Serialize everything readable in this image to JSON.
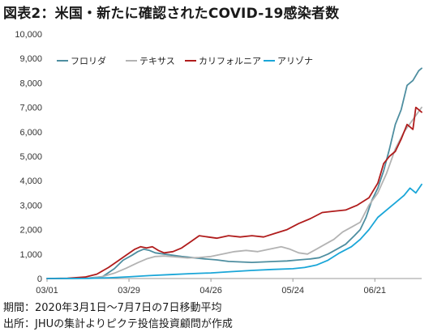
{
  "figure": {
    "title": "図表2：米国・新たに確認されたCOVID-19感染者数",
    "note_period": "期間：2020年3月1日～7月7日の7日移動平均",
    "note_source": "出所：JHUの集計よりピクテ投信投資顧問が作成"
  },
  "chart_data": {
    "type": "line",
    "title": "",
    "xlabel": "",
    "ylabel": "",
    "ylim": [
      0,
      10000
    ],
    "yticks": [
      0,
      1000,
      2000,
      3000,
      4000,
      5000,
      6000,
      7000,
      8000,
      9000,
      10000
    ],
    "ytick_labels": [
      "0",
      "1,000",
      "2,000",
      "3,000",
      "4,000",
      "5,000",
      "6,000",
      "7,000",
      "8,000",
      "9,000",
      "10,000"
    ],
    "xlim": [
      "2020-03-01",
      "2020-07-07"
    ],
    "xtick_labels": [
      "03/01",
      "03/29",
      "04/26",
      "05/24",
      "06/21"
    ],
    "xtick_dates": [
      "2020-03-01",
      "2020-03-29",
      "2020-04-26",
      "2020-05-24",
      "2020-06-21"
    ],
    "grid": false,
    "legend_position": "top-right",
    "series": [
      {
        "name": "フロリダ",
        "color": "#4e8ea0",
        "points": [
          [
            "2020-03-01",
            0
          ],
          [
            "2020-03-08",
            2
          ],
          [
            "2020-03-15",
            15
          ],
          [
            "2020-03-20",
            80
          ],
          [
            "2020-03-24",
            400
          ],
          [
            "2020-03-27",
            750
          ],
          [
            "2020-03-30",
            950
          ],
          [
            "2020-04-01",
            1100
          ],
          [
            "2020-04-03",
            1200
          ],
          [
            "2020-04-05",
            1150
          ],
          [
            "2020-04-07",
            1050
          ],
          [
            "2020-04-10",
            1000
          ],
          [
            "2020-04-13",
            950
          ],
          [
            "2020-04-16",
            900
          ],
          [
            "2020-04-20",
            850
          ],
          [
            "2020-04-24",
            800
          ],
          [
            "2020-04-28",
            760
          ],
          [
            "2020-05-02",
            700
          ],
          [
            "2020-05-06",
            680
          ],
          [
            "2020-05-10",
            660
          ],
          [
            "2020-05-14",
            680
          ],
          [
            "2020-05-18",
            700
          ],
          [
            "2020-05-22",
            720
          ],
          [
            "2020-05-26",
            760
          ],
          [
            "2020-05-30",
            800
          ],
          [
            "2020-06-02",
            850
          ],
          [
            "2020-06-05",
            1000
          ],
          [
            "2020-06-08",
            1200
          ],
          [
            "2020-06-11",
            1400
          ],
          [
            "2020-06-14",
            1750
          ],
          [
            "2020-06-16",
            2000
          ],
          [
            "2020-06-18",
            2500
          ],
          [
            "2020-06-20",
            3200
          ],
          [
            "2020-06-22",
            3700
          ],
          [
            "2020-06-24",
            4400
          ],
          [
            "2020-06-26",
            5300
          ],
          [
            "2020-06-28",
            6300
          ],
          [
            "2020-06-30",
            6900
          ],
          [
            "2020-07-02",
            7900
          ],
          [
            "2020-07-04",
            8100
          ],
          [
            "2020-07-06",
            8500
          ],
          [
            "2020-07-07",
            8600
          ]
        ]
      },
      {
        "name": "テキサス",
        "color": "#b3b3b3",
        "points": [
          [
            "2020-03-01",
            0
          ],
          [
            "2020-03-10",
            3
          ],
          [
            "2020-03-16",
            20
          ],
          [
            "2020-03-20",
            80
          ],
          [
            "2020-03-24",
            220
          ],
          [
            "2020-03-28",
            420
          ],
          [
            "2020-04-01",
            650
          ],
          [
            "2020-04-04",
            800
          ],
          [
            "2020-04-07",
            900
          ],
          [
            "2020-04-10",
            920
          ],
          [
            "2020-04-14",
            880
          ],
          [
            "2020-04-18",
            840
          ],
          [
            "2020-04-22",
            860
          ],
          [
            "2020-04-26",
            900
          ],
          [
            "2020-04-30",
            1000
          ],
          [
            "2020-05-04",
            1100
          ],
          [
            "2020-05-08",
            1150
          ],
          [
            "2020-05-12",
            1100
          ],
          [
            "2020-05-16",
            1200
          ],
          [
            "2020-05-20",
            1300
          ],
          [
            "2020-05-23",
            1200
          ],
          [
            "2020-05-26",
            1050
          ],
          [
            "2020-05-29",
            1000
          ],
          [
            "2020-06-01",
            1200
          ],
          [
            "2020-06-04",
            1400
          ],
          [
            "2020-06-07",
            1600
          ],
          [
            "2020-06-10",
            1900
          ],
          [
            "2020-06-13",
            2100
          ],
          [
            "2020-06-16",
            2300
          ],
          [
            "2020-06-19",
            3000
          ],
          [
            "2020-06-22",
            3500
          ],
          [
            "2020-06-25",
            4300
          ],
          [
            "2020-06-28",
            5300
          ],
          [
            "2020-07-01",
            6000
          ],
          [
            "2020-07-04",
            6500
          ],
          [
            "2020-07-07",
            7000
          ]
        ]
      },
      {
        "name": "カリフォルニア",
        "color": "#b01c1c",
        "points": [
          [
            "2020-03-01",
            0
          ],
          [
            "2020-03-08",
            10
          ],
          [
            "2020-03-14",
            60
          ],
          [
            "2020-03-18",
            180
          ],
          [
            "2020-03-22",
            450
          ],
          [
            "2020-03-25",
            700
          ],
          [
            "2020-03-28",
            950
          ],
          [
            "2020-03-31",
            1200
          ],
          [
            "2020-04-02",
            1300
          ],
          [
            "2020-04-04",
            1250
          ],
          [
            "2020-04-06",
            1300
          ],
          [
            "2020-04-08",
            1150
          ],
          [
            "2020-04-10",
            1050
          ],
          [
            "2020-04-13",
            1100
          ],
          [
            "2020-04-16",
            1250
          ],
          [
            "2020-04-19",
            1500
          ],
          [
            "2020-04-22",
            1750
          ],
          [
            "2020-04-25",
            1700
          ],
          [
            "2020-04-28",
            1650
          ],
          [
            "2020-05-02",
            1750
          ],
          [
            "2020-05-06",
            1700
          ],
          [
            "2020-05-10",
            1750
          ],
          [
            "2020-05-14",
            1700
          ],
          [
            "2020-05-18",
            1850
          ],
          [
            "2020-05-22",
            2000
          ],
          [
            "2020-05-26",
            2250
          ],
          [
            "2020-05-30",
            2450
          ],
          [
            "2020-06-03",
            2700
          ],
          [
            "2020-06-07",
            2750
          ],
          [
            "2020-06-11",
            2800
          ],
          [
            "2020-06-15",
            3000
          ],
          [
            "2020-06-19",
            3300
          ],
          [
            "2020-06-22",
            3900
          ],
          [
            "2020-06-24",
            4700
          ],
          [
            "2020-06-26",
            5000
          ],
          [
            "2020-06-28",
            5200
          ],
          [
            "2020-06-30",
            5700
          ],
          [
            "2020-07-02",
            6300
          ],
          [
            "2020-07-04",
            6100
          ],
          [
            "2020-07-05",
            7000
          ],
          [
            "2020-07-07",
            6800
          ]
        ]
      },
      {
        "name": "アリゾナ",
        "color": "#1aa6d8",
        "points": [
          [
            "2020-03-01",
            0
          ],
          [
            "2020-03-15",
            5
          ],
          [
            "2020-03-22",
            30
          ],
          [
            "2020-03-29",
            70
          ],
          [
            "2020-04-05",
            120
          ],
          [
            "2020-04-12",
            160
          ],
          [
            "2020-04-19",
            200
          ],
          [
            "2020-04-26",
            230
          ],
          [
            "2020-05-03",
            280
          ],
          [
            "2020-05-10",
            330
          ],
          [
            "2020-05-17",
            370
          ],
          [
            "2020-05-24",
            400
          ],
          [
            "2020-05-28",
            450
          ],
          [
            "2020-06-01",
            550
          ],
          [
            "2020-06-05",
            750
          ],
          [
            "2020-06-09",
            1050
          ],
          [
            "2020-06-13",
            1300
          ],
          [
            "2020-06-16",
            1600
          ],
          [
            "2020-06-19",
            2000
          ],
          [
            "2020-06-22",
            2500
          ],
          [
            "2020-06-25",
            2800
          ],
          [
            "2020-06-28",
            3100
          ],
          [
            "2020-07-01",
            3400
          ],
          [
            "2020-07-03",
            3700
          ],
          [
            "2020-07-05",
            3500
          ],
          [
            "2020-07-07",
            3850
          ]
        ]
      }
    ]
  }
}
